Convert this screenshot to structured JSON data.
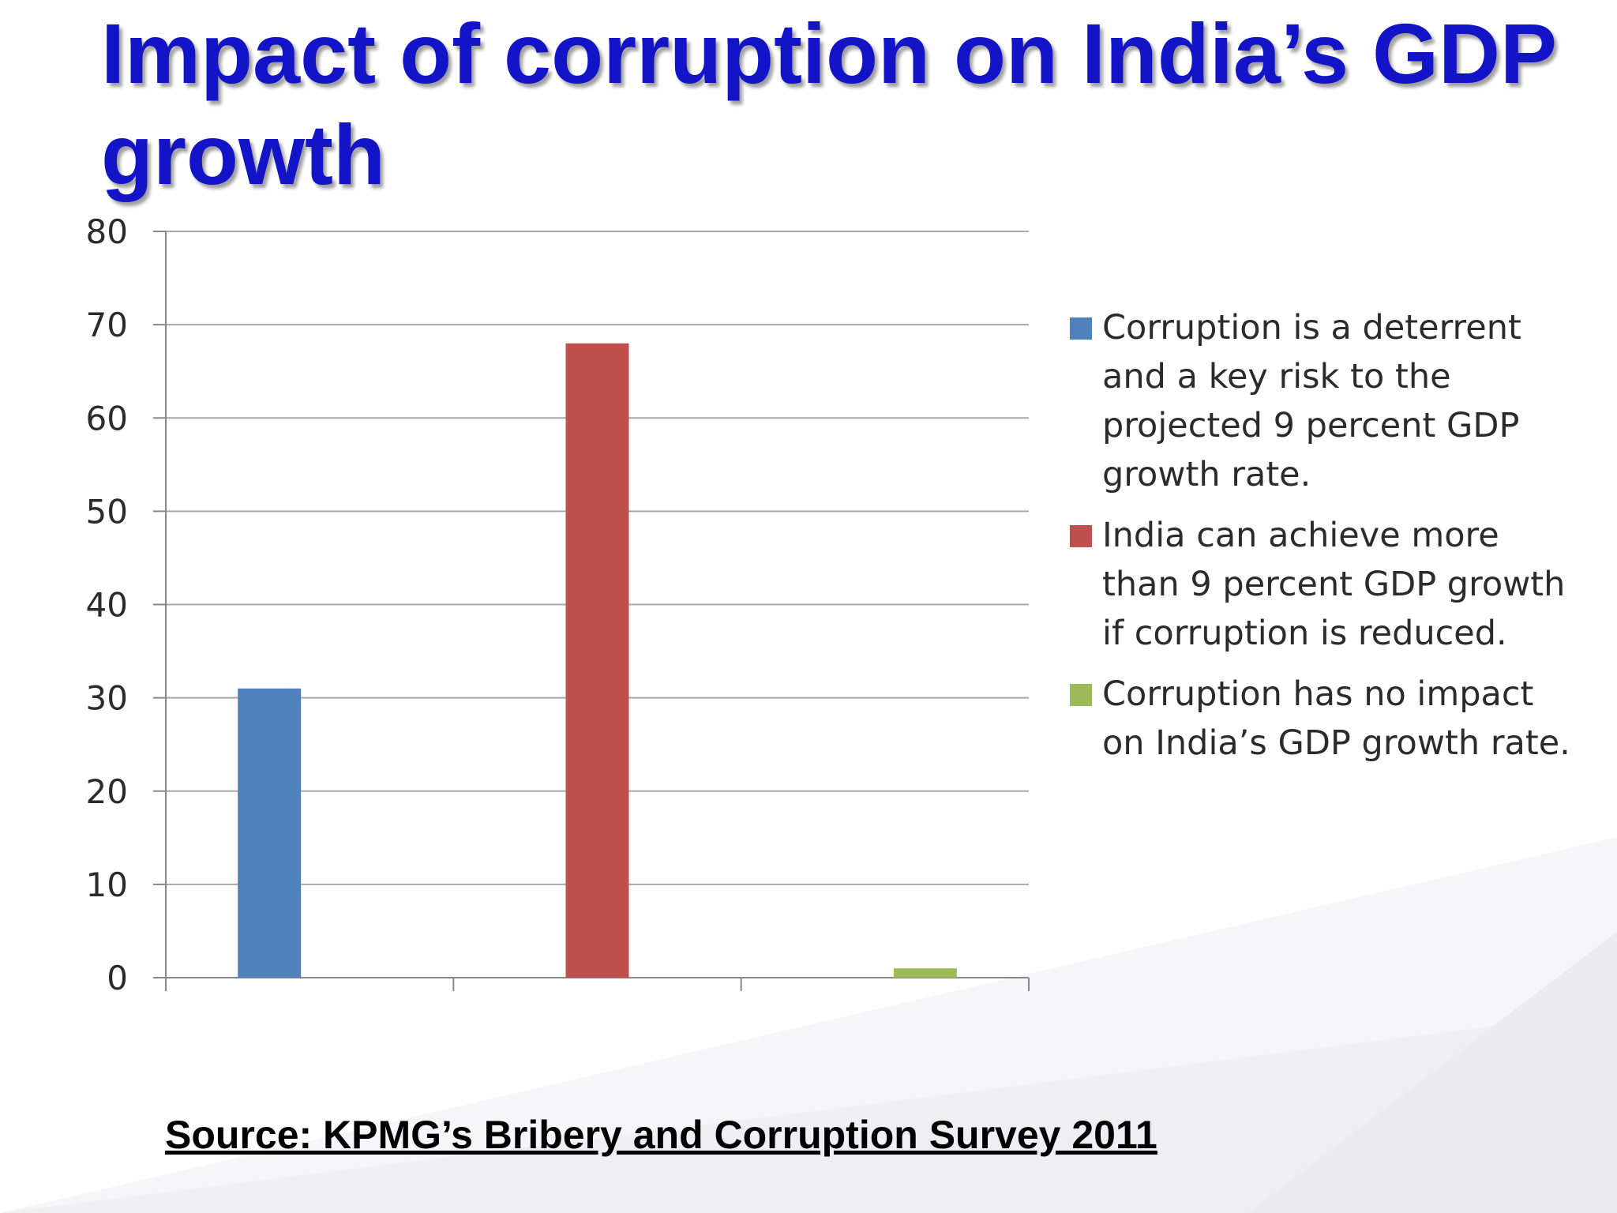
{
  "title": "Impact of corruption on India’s GDP growth",
  "source": "Source: KPMG’s Bribery and Corruption Survey 2011",
  "colors": {
    "title": "#1313c8",
    "series_blue": "#4f81bd",
    "series_red": "#c0504d",
    "series_green": "#9bbb59"
  },
  "chart_data": {
    "type": "bar",
    "title": "",
    "xlabel": "",
    "ylabel": "",
    "ylim": [
      0,
      80
    ],
    "yticks": [
      "0",
      "10",
      "20",
      "30",
      "40",
      "50",
      "60",
      "70",
      "80"
    ],
    "grid": true,
    "legend_position": "right",
    "series": [
      {
        "name": "Corruption is a deterrent and a key risk to the projected 9 percent GDP growth rate.",
        "value": 31,
        "color": "#4f81bd"
      },
      {
        "name": "India can achieve more than 9 percent GDP growth if corruption is reduced.",
        "value": 68,
        "color": "#c0504d"
      },
      {
        "name": "Corruption has no impact on India’s GDP growth rate.",
        "value": 1,
        "color": "#9bbb59"
      }
    ]
  }
}
